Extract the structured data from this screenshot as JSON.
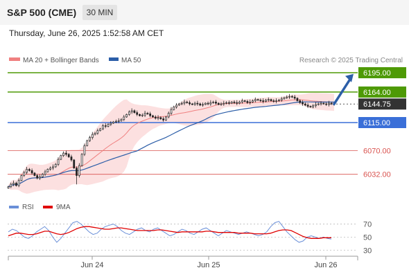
{
  "header": {
    "title": "S&P 500 (CME)",
    "timeframe": "30 MIN",
    "timestamp": "Thursday, June 26, 2025 1:52:58 AM CET"
  },
  "colors": {
    "resistance": "#4e9a06",
    "current": "#333333",
    "pivot": "#3a6fd8",
    "support": "#d9534f",
    "ma20": "#f08080",
    "bollinger_fill": "#fbd3d3",
    "ma50": "#2c5ea8",
    "rsi": "#6a8fd8",
    "rsi_ma": "#e00000",
    "arrow": "#2c5ea8",
    "candle": "#222222"
  },
  "chart_data": [
    {
      "type": "candlestick",
      "legend": [
        {
          "label": "MA 20 + Bollinger Bands",
          "color": "#f08080"
        },
        {
          "label": "MA 50",
          "color": "#2c5ea8"
        }
      ],
      "credit": "Research © 2025 Trading Central",
      "x_ticks": [
        "Jun 24",
        "Jun 25",
        "Jun 26"
      ],
      "ylim": [
        6005,
        6205
      ],
      "levels": [
        {
          "value": 6195.0,
          "label": "6195.00",
          "kind": "resistance"
        },
        {
          "value": 6164.0,
          "label": "6164.00",
          "kind": "resistance"
        },
        {
          "value": 6144.75,
          "label": "6144.75",
          "kind": "current"
        },
        {
          "value": 6115.0,
          "label": "6115.00",
          "kind": "pivot"
        },
        {
          "value": 6070.0,
          "label": "6070.00",
          "kind": "support"
        },
        {
          "value": 6032.0,
          "label": "6032.00",
          "kind": "support"
        }
      ],
      "close": [
        6012,
        6016,
        6018,
        6014,
        6022,
        6030,
        6035,
        6040,
        6038,
        6034,
        6030,
        6026,
        6028,
        6032,
        6036,
        6040,
        6042,
        6044,
        6048,
        6056,
        6062,
        6066,
        6064,
        6060,
        6055,
        6042,
        6030,
        6046,
        6064,
        6078,
        6086,
        6091,
        6096,
        6098,
        6102,
        6105,
        6110,
        6109,
        6112,
        6114,
        6116,
        6117,
        6118,
        6120,
        6124,
        6128,
        6132,
        6134,
        6131,
        6128,
        6126,
        6127,
        6130,
        6129,
        6126,
        6124,
        6122,
        6123,
        6121,
        6119,
        6124,
        6130,
        6136,
        6140,
        6143,
        6145,
        6146,
        6148,
        6147,
        6145,
        6144,
        6146,
        6145,
        6143,
        6144,
        6146,
        6145,
        6147,
        6148,
        6146,
        6144,
        6145,
        6146,
        6147,
        6146,
        6148,
        6147,
        6146,
        6148,
        6150,
        6149,
        6147,
        6148,
        6150,
        6152,
        6151,
        6150,
        6149,
        6151,
        6152,
        6150,
        6149,
        6150,
        6151,
        6153,
        6155,
        6156,
        6157,
        6156,
        6154,
        6150,
        6147,
        6145,
        6143,
        6141,
        6140,
        6142,
        6144,
        6145,
        6146,
        6145,
        6144,
        6146,
        6145,
        6144.75
      ]
    },
    {
      "type": "line",
      "legend": [
        {
          "label": "RSI",
          "color": "#6a8fd8"
        },
        {
          "label": "9MA",
          "color": "#e00000"
        }
      ],
      "ylim": [
        25,
        80
      ],
      "y_ticks": [
        70,
        50,
        30
      ],
      "series": [
        {
          "name": "RSI",
          "values": [
            58,
            62,
            60,
            55,
            50,
            48,
            52,
            58,
            62,
            66,
            60,
            50,
            42,
            48,
            56,
            64,
            72,
            74,
            70,
            64,
            58,
            54,
            56,
            62,
            66,
            68,
            70,
            66,
            60,
            56,
            54,
            58,
            62,
            64,
            60,
            58,
            62,
            64,
            60,
            56,
            52,
            54,
            58,
            62,
            60,
            56,
            54,
            58,
            62,
            64,
            60,
            56,
            52,
            56,
            60,
            58,
            56,
            54,
            56,
            58,
            56,
            54,
            52,
            54,
            58,
            66,
            72,
            74,
            66,
            58,
            52,
            46,
            42,
            44,
            50,
            52,
            50,
            48,
            50,
            48,
            47
          ]
        },
        {
          "name": "9MA",
          "values": [
            52,
            54,
            56,
            56,
            55,
            54,
            54,
            55,
            57,
            59,
            59,
            57,
            55,
            54,
            55,
            57,
            60,
            63,
            65,
            66,
            66,
            65,
            64,
            63,
            62,
            62,
            63,
            64,
            64,
            63,
            62,
            61,
            60,
            60,
            60,
            60,
            60,
            61,
            61,
            60,
            59,
            58,
            57,
            58,
            58,
            58,
            58,
            58,
            58,
            59,
            59,
            58,
            57,
            57,
            57,
            57,
            57,
            56,
            56,
            56,
            56,
            55,
            55,
            55,
            55,
            56,
            58,
            60,
            61,
            61,
            60,
            57,
            54,
            51,
            49,
            48,
            48,
            48,
            49,
            49,
            49
          ]
        }
      ]
    }
  ]
}
